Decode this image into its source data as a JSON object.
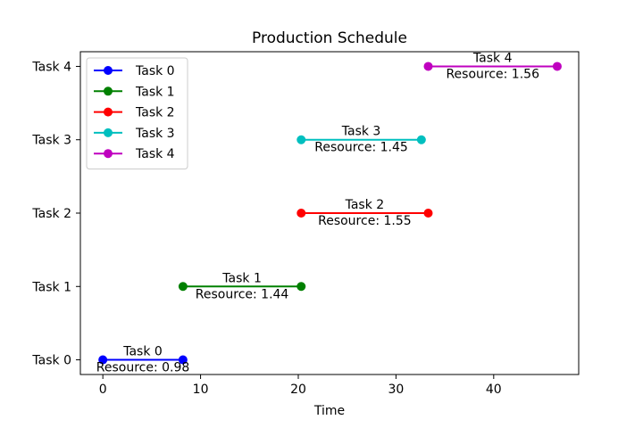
{
  "chart_data": {
    "type": "line",
    "title": "Production Schedule",
    "xlabel": "Time",
    "ylabel": "",
    "xlim": [
      -2.3,
      48.7
    ],
    "ylim": [
      -0.2,
      4.2
    ],
    "xticks": [
      0,
      10,
      20,
      30,
      40
    ],
    "xtick_labels": [
      "0",
      "10",
      "20",
      "30",
      "40"
    ],
    "yticks": [
      0,
      1,
      2,
      3,
      4
    ],
    "ytick_labels": [
      "Task 0",
      "Task 1",
      "Task 2",
      "Task 3",
      "Task 4"
    ],
    "grid": false,
    "legend_position": "top-left",
    "series": [
      {
        "name": "Task 0",
        "color": "#0000ff",
        "x": [
          0,
          8.2
        ],
        "y": [
          0,
          0
        ],
        "label": "Task 0",
        "resource_label": "Resource: 0.98"
      },
      {
        "name": "Task 1",
        "color": "#008000",
        "x": [
          8.2,
          20.3
        ],
        "y": [
          1,
          1
        ],
        "label": "Task 1",
        "resource_label": "Resource: 1.44"
      },
      {
        "name": "Task 2",
        "color": "#ff0000",
        "x": [
          20.3,
          33.3
        ],
        "y": [
          2,
          2
        ],
        "label": "Task 2",
        "resource_label": "Resource: 1.55"
      },
      {
        "name": "Task 3",
        "color": "#00bfbf",
        "x": [
          20.3,
          32.6
        ],
        "y": [
          3,
          3
        ],
        "label": "Task 3",
        "resource_label": "Resource: 1.45"
      },
      {
        "name": "Task 4",
        "color": "#bf00bf",
        "x": [
          33.3,
          46.5
        ],
        "y": [
          4,
          4
        ],
        "label": "Task 4",
        "resource_label": "Resource: 1.56"
      }
    ]
  }
}
